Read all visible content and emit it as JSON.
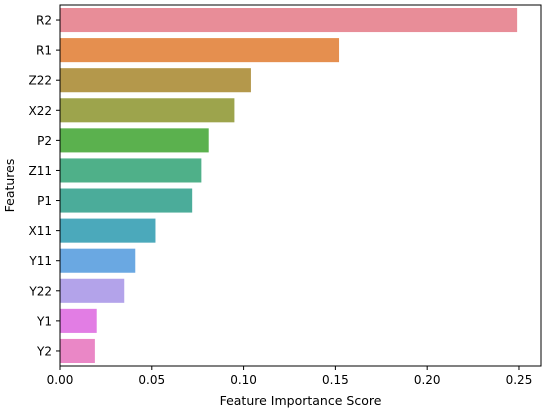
{
  "chart_data": {
    "type": "bar",
    "orientation": "horizontal",
    "xlabel": "Feature Importance Score",
    "ylabel": "Features",
    "xlim": [
      0,
      0.262
    ],
    "xticks": [
      0.0,
      0.05,
      0.1,
      0.15,
      0.2,
      0.25
    ],
    "xtick_labels": [
      "0.00",
      "0.05",
      "0.10",
      "0.15",
      "0.20",
      "0.25"
    ],
    "grid": false,
    "legend": "none",
    "bars": [
      {
        "label": "R2",
        "value": 0.249,
        "color": "#e88d98"
      },
      {
        "label": "R1",
        "value": 0.152,
        "color": "#e58f4f"
      },
      {
        "label": "Z22",
        "value": 0.104,
        "color": "#b4984b"
      },
      {
        "label": "X22",
        "value": 0.095,
        "color": "#9da44c"
      },
      {
        "label": "P2",
        "value": 0.081,
        "color": "#5bb14e"
      },
      {
        "label": "Z11",
        "value": 0.077,
        "color": "#4fb089"
      },
      {
        "label": "P1",
        "value": 0.072,
        "color": "#4bac9a"
      },
      {
        "label": "X11",
        "value": 0.052,
        "color": "#4ba9bb"
      },
      {
        "label": "Y11",
        "value": 0.041,
        "color": "#6aa8e2"
      },
      {
        "label": "Y22",
        "value": 0.035,
        "color": "#b3a3ea"
      },
      {
        "label": "Y1",
        "value": 0.02,
        "color": "#e27de4"
      },
      {
        "label": "Y2",
        "value": 0.019,
        "color": "#ea87c6"
      }
    ]
  }
}
